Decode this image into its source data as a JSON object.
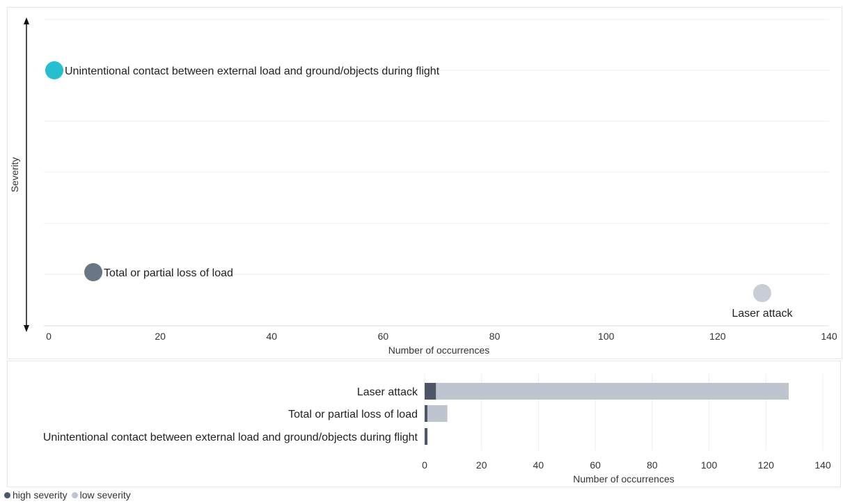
{
  "chart_data": [
    {
      "type": "scatter",
      "xlabel": "Number of occurrences",
      "ylabel": "Severity",
      "xlim": [
        0,
        140
      ],
      "x_ticks": [
        "0",
        "20",
        "40",
        "60",
        "80",
        "100",
        "120",
        "140"
      ],
      "grid": true,
      "points": [
        {
          "label": "Unintentional contact between external load and ground/objects during flight",
          "x": 1,
          "severity_rank": 1,
          "color": "#26BFCF"
        },
        {
          "label": "Total or partial loss of load",
          "x": 8,
          "severity_rank": 2,
          "color": "#6B7685"
        },
        {
          "label": "Laser attack",
          "x": 128,
          "severity_rank": 3,
          "color": "#C9CDD5"
        }
      ]
    },
    {
      "type": "bar",
      "orientation": "horizontal",
      "stacked": true,
      "xlabel": "Number of occurrences",
      "xlim": [
        0,
        140
      ],
      "x_ticks": [
        "0",
        "20",
        "40",
        "60",
        "80",
        "100",
        "120",
        "140"
      ],
      "grid": true,
      "categories": [
        "Laser attack",
        "Total or partial loss of load",
        "Unintentional contact between external load and ground/objects during flight"
      ],
      "series": [
        {
          "name": "high severity",
          "color": "#4D5767",
          "values": [
            4,
            1,
            1
          ]
        },
        {
          "name": "low severity",
          "color": "#BFC5CF",
          "values": [
            124,
            7,
            0
          ]
        }
      ],
      "legend_position": "bottom-left"
    }
  ]
}
